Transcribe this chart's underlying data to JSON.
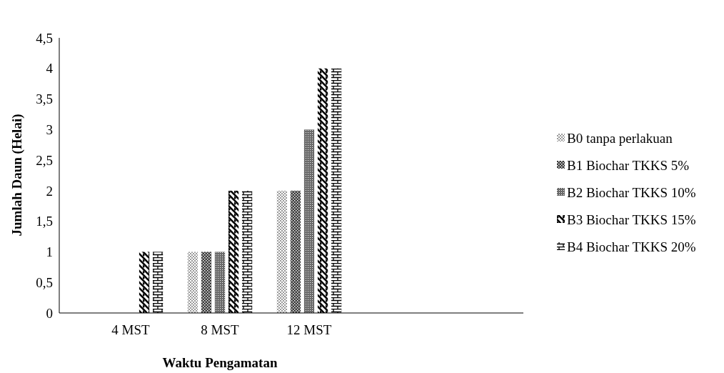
{
  "chart_data": {
    "type": "bar",
    "xlabel": "Waktu Pengamatan",
    "ylabel": "Jumlah Daun (Helai)",
    "categories": [
      "4 MST",
      "8 MST",
      "12 MST"
    ],
    "series": [
      {
        "name": "B0 tanpa perlakuan",
        "color": "#9a9a9a",
        "values": [
          0,
          1,
          2
        ]
      },
      {
        "name": "B1 Biochar TKKS 5%",
        "color": "#3a3a3a",
        "values": [
          0,
          1,
          2
        ]
      },
      {
        "name": "B2 Biochar TKKS 10%",
        "color": "#6a6a6a",
        "values": [
          0,
          1,
          3
        ]
      },
      {
        "name": "B3 Biochar TKKS 15%",
        "color": "#000000",
        "values": [
          1,
          2,
          4
        ]
      },
      {
        "name": "B4 Biochar TKKS 20%",
        "color": "#000000",
        "values": [
          1,
          2,
          4
        ]
      }
    ],
    "ylim": [
      0,
      4.5
    ],
    "yticks": [
      0,
      {
        "value": 0.5,
        "label": "0,5"
      },
      1,
      {
        "value": 1.5,
        "label": "1,5"
      },
      2,
      {
        "value": 2.5,
        "label": "2,5"
      },
      3,
      {
        "value": 3.5,
        "label": "3,5"
      },
      4,
      {
        "value": 4.5,
        "label": "4,5"
      }
    ],
    "grid": false,
    "legend": "right"
  }
}
